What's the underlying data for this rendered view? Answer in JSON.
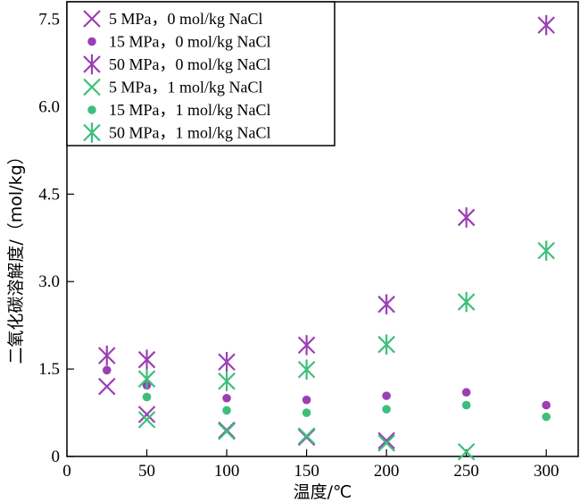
{
  "chart_data": {
    "type": "scatter",
    "xlabel": "温度/℃",
    "ylabel": "二氧化碳溶解度/（mol/kg）",
    "xlim": [
      0,
      320
    ],
    "ylim": [
      0,
      7.8
    ],
    "x_ticks": [
      0,
      50,
      100,
      150,
      200,
      250,
      300
    ],
    "x_tick_labels": [
      "0",
      "50",
      "100",
      "150",
      "200",
      "250",
      "300"
    ],
    "y_ticks": [
      0,
      1.5,
      3.0,
      4.5,
      6.0,
      7.5
    ],
    "y_tick_labels": [
      "0",
      "1.5",
      "3.0",
      "4.5",
      "6.0",
      "7.5"
    ],
    "legend_position": "top-left",
    "grid": false,
    "series": [
      {
        "name": "5 MPa，0 mol/kg NaCl",
        "color": "#9b3fb5",
        "marker": "x",
        "x": [
          25,
          50,
          100,
          150,
          200,
          250
        ],
        "y": [
          1.2,
          0.72,
          0.45,
          0.33,
          0.27,
          null
        ]
      },
      {
        "name": "15 MPa，0 mol/kg NaCl",
        "color": "#9b3fb5",
        "marker": "dot",
        "x": [
          25,
          50,
          100,
          150,
          200,
          250,
          300
        ],
        "y": [
          1.48,
          1.22,
          1.0,
          0.97,
          1.04,
          1.1,
          0.88
        ]
      },
      {
        "name": "50 MPa，0 mol/kg NaCl",
        "color": "#9b3fb5",
        "marker": "star",
        "x": [
          25,
          50,
          100,
          150,
          200,
          250,
          300
        ],
        "y": [
          1.73,
          1.66,
          1.62,
          1.91,
          2.61,
          4.1,
          7.4
        ]
      },
      {
        "name": "5 MPa，1 mol/kg NaCl",
        "color": "#3dbf7a",
        "marker": "x",
        "x": [
          50,
          100,
          150,
          200,
          250
        ],
        "y": [
          0.63,
          0.43,
          0.35,
          0.23,
          0.08
        ]
      },
      {
        "name": "15 MPa，1 mol/kg NaCl",
        "color": "#3dbf7a",
        "marker": "dot",
        "x": [
          50,
          100,
          150,
          200,
          250,
          300
        ],
        "y": [
          1.02,
          0.79,
          0.75,
          0.81,
          0.88,
          0.68
        ]
      },
      {
        "name": "50 MPa，1 mol/kg NaCl",
        "color": "#3dbf7a",
        "marker": "star",
        "x": [
          50,
          100,
          150,
          200,
          250,
          300
        ],
        "y": [
          1.33,
          1.29,
          1.49,
          1.92,
          2.65,
          3.53
        ]
      }
    ]
  }
}
